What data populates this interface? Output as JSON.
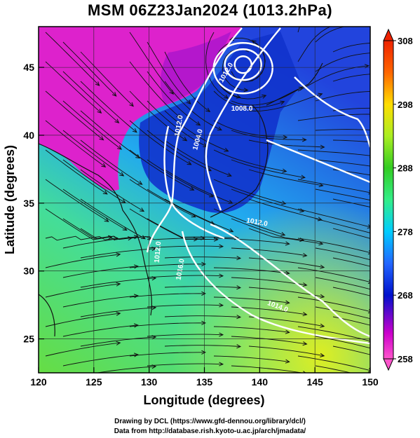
{
  "title": "MSM 06Z23Jan2024 (1013.2hPa)",
  "map": {
    "type": "weather-map",
    "field": "temperature shading with streamlines and pressure contours",
    "x_axis": {
      "label": "Longitude (degrees)",
      "range": [
        120,
        150
      ],
      "ticks": [
        "120",
        "125",
        "130",
        "135",
        "140",
        "145",
        "150"
      ]
    },
    "y_axis": {
      "label": "Latitude  (degrees)",
      "range": [
        22.5,
        48
      ],
      "ticks": [
        "25",
        "30",
        "35",
        "40",
        "45"
      ]
    },
    "colorbar": {
      "ticks": [
        "258",
        "268",
        "278",
        "288",
        "298",
        "308"
      ],
      "range": [
        258,
        308
      ],
      "colors": [
        "#ff55cc",
        "#cc00cc",
        "#0011cc",
        "#2266ff",
        "#00ccff",
        "#33ee88",
        "#33cc22",
        "#aaee22",
        "#ffdd00",
        "#ff6600",
        "#ee2200"
      ]
    },
    "contour_labels": [
      "1012.0",
      "1012.0",
      "1008.0",
      "1004.0",
      "1012.0",
      "1012.0",
      "1014.0",
      "1016.0"
    ],
    "low_center": {
      "lon": 138.5,
      "lat": 45.2
    }
  },
  "credits": {
    "line1": "Drawing by DCL (https://www.gfd-dennou.org/library/dcl/)",
    "line2": "Data from http://database.rish.kyoto-u.ac.jp/arch/jmadata/"
  }
}
